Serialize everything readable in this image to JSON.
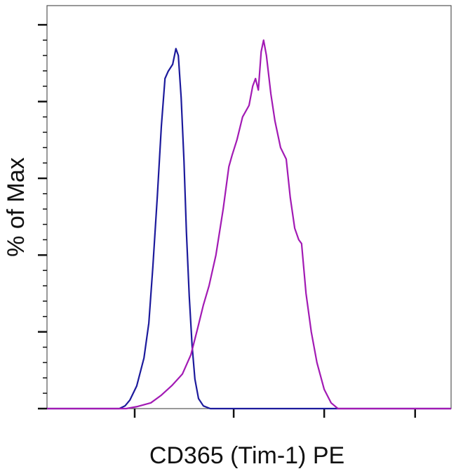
{
  "chart_data": {
    "type": "line",
    "xlabel": "CD365 (Tim-1) PE",
    "ylabel": "% of Max",
    "xlim": [
      0,
      1000
    ],
    "ylim": [
      0,
      105
    ],
    "xticks": [
      217,
      462,
      686,
      911
    ],
    "yticks": [
      0,
      20,
      40,
      60,
      80,
      100
    ],
    "series": [
      {
        "color": "#1c1a9c",
        "x": [
          0,
          179,
          193,
          205,
          222,
          240,
          252,
          262,
          273,
          283,
          292,
          300,
          311,
          319,
          325,
          332,
          339,
          345,
          352,
          359,
          366,
          375,
          387,
          404,
          1000
        ],
        "values": [
          0,
          0,
          0.7,
          2.2,
          5.9,
          13.2,
          22.3,
          37,
          55.3,
          73.6,
          86,
          87.9,
          89.7,
          93.8,
          92,
          81,
          64.5,
          46,
          29.3,
          16.5,
          7.7,
          2.6,
          0.7,
          0,
          0
        ]
      },
      {
        "color": "#a21ab4",
        "x": [
          0,
          196,
          222,
          257,
          283,
          309,
          335,
          356,
          373,
          387,
          401,
          418,
          436,
          450,
          458,
          470,
          484,
          500,
          509,
          516,
          523,
          530,
          536,
          543,
          554,
          564,
          578,
          592,
          602,
          613,
          623,
          630,
          641,
          654,
          668,
          686,
          703,
          720,
          1000
        ],
        "values": [
          0,
          0,
          0.5,
          1.5,
          3.5,
          6,
          9,
          14,
          21,
          27,
          32,
          40,
          52,
          63,
          66,
          70,
          76,
          79,
          84,
          86,
          83,
          93,
          96,
          92,
          82,
          75,
          68,
          65,
          55,
          47,
          44,
          43,
          30,
          20,
          12,
          5,
          1.5,
          0,
          0
        ]
      }
    ]
  }
}
